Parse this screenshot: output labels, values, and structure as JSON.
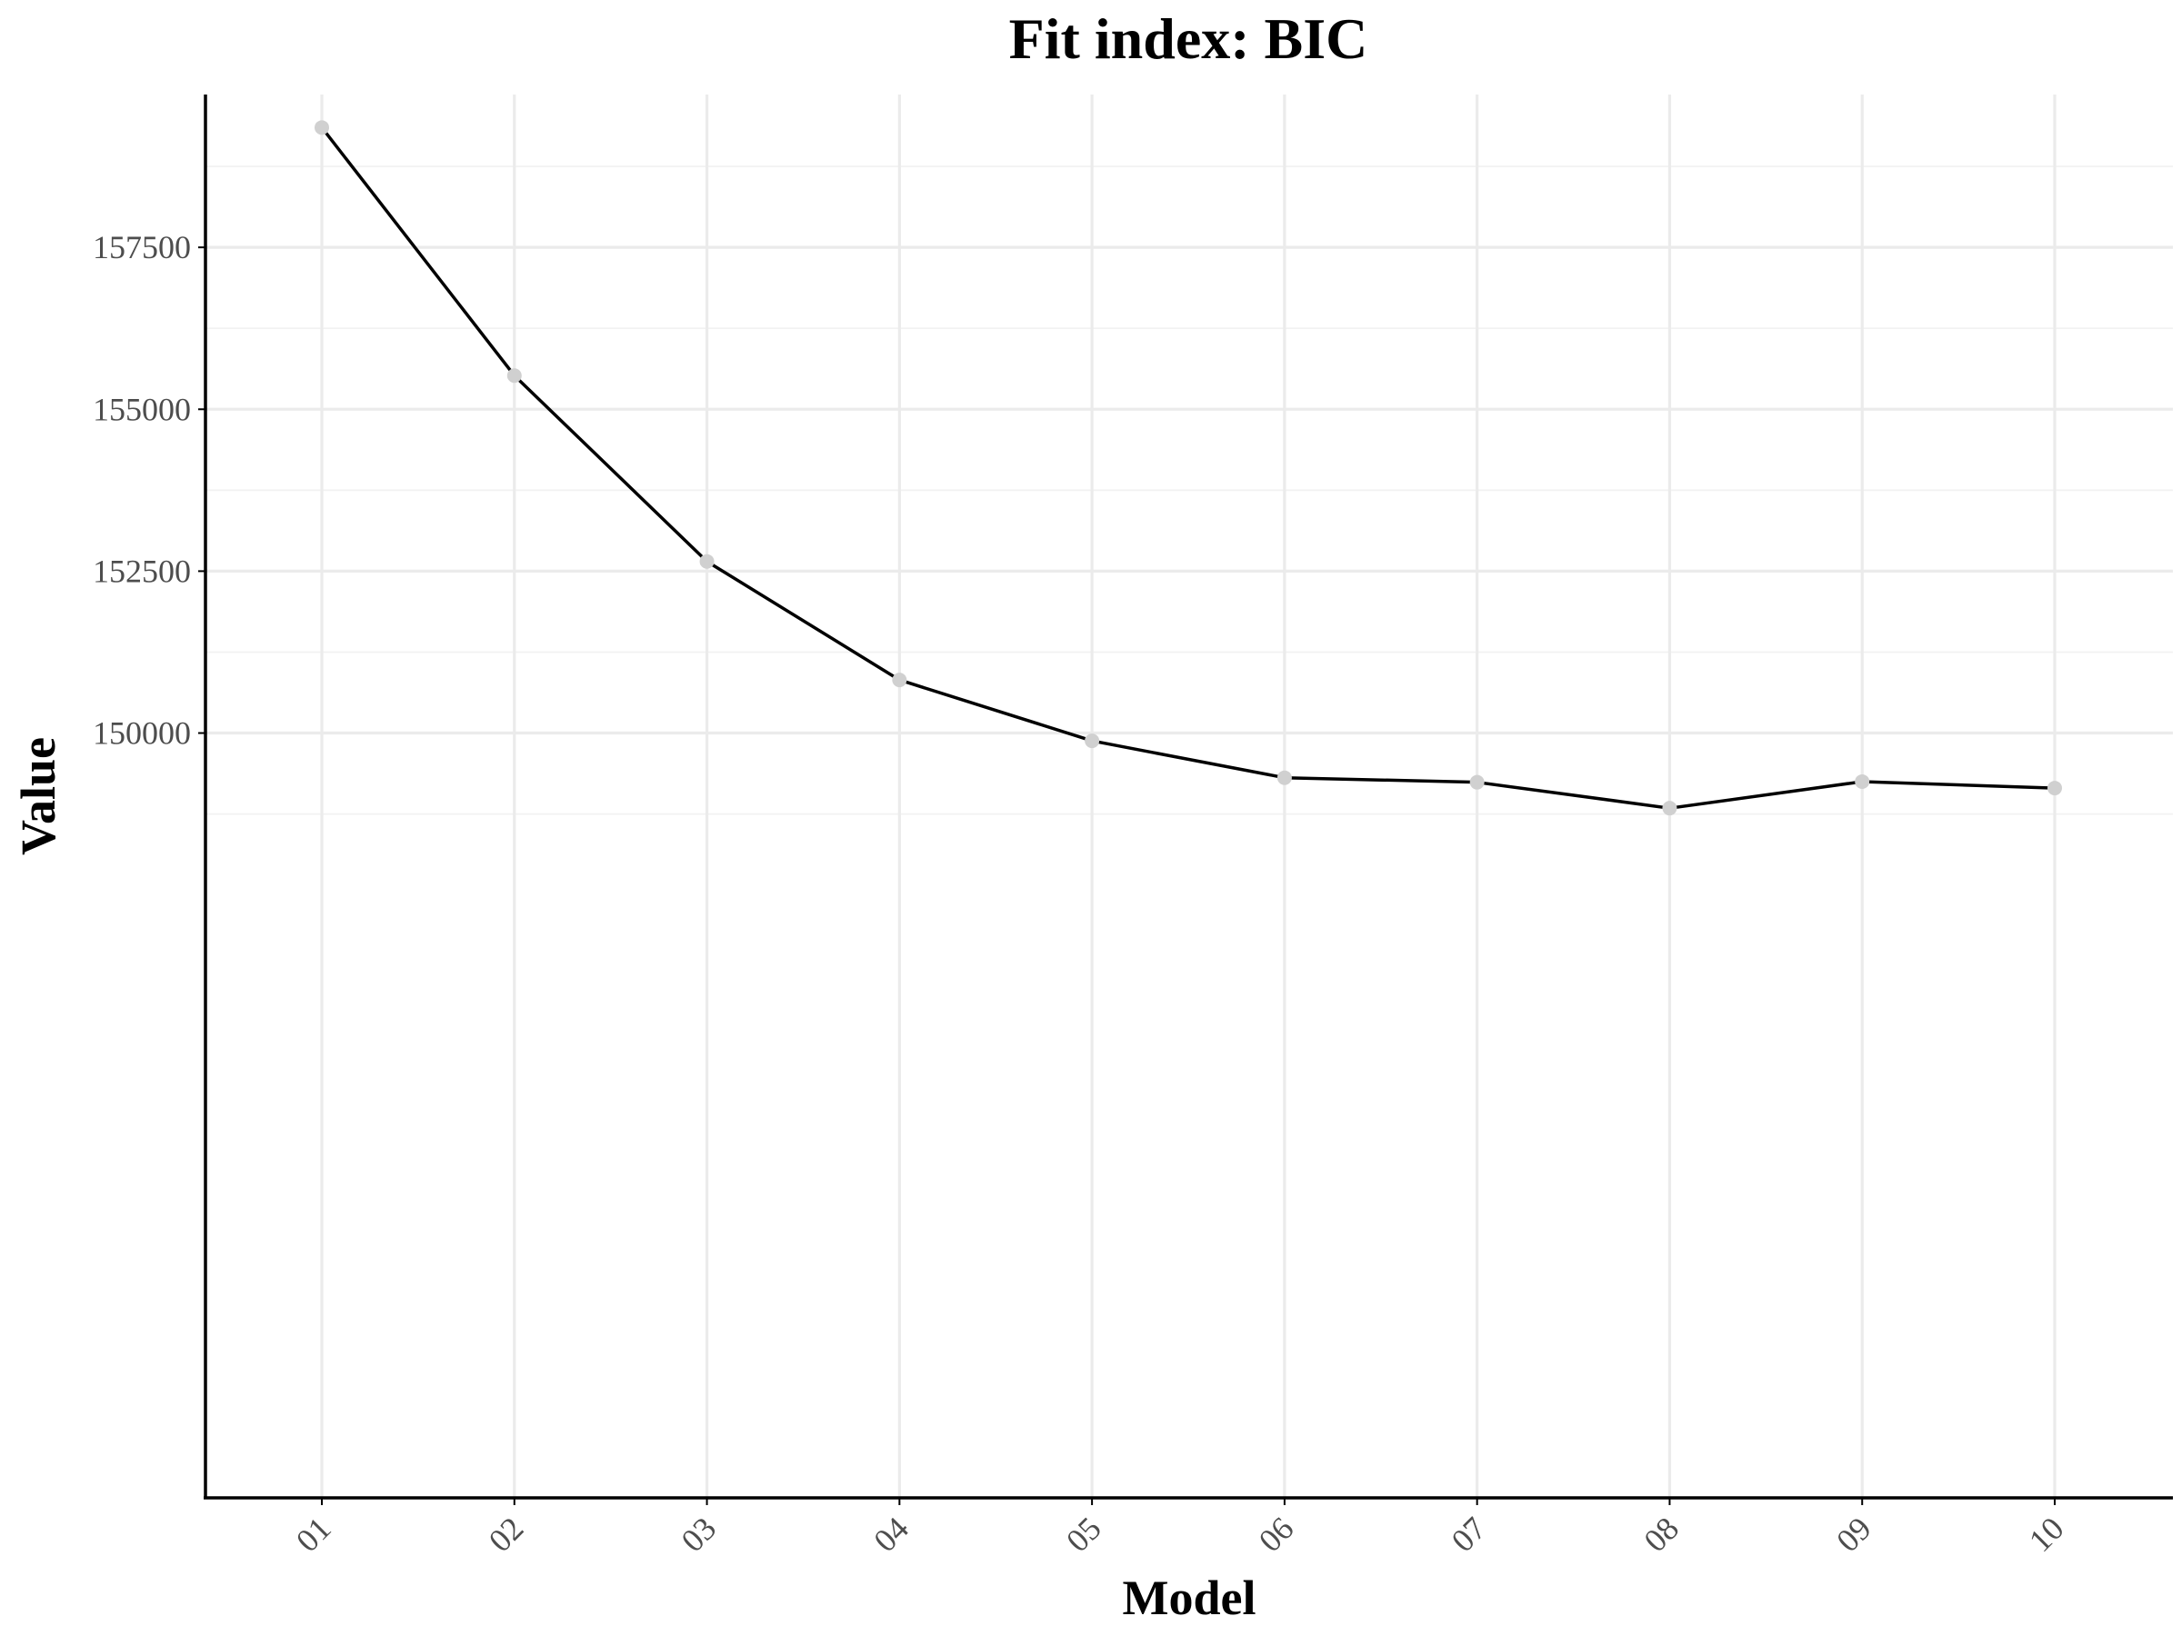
{
  "chart_data": {
    "type": "line",
    "title": "Fit index: BIC",
    "xlabel": "Model",
    "ylabel": "Value",
    "categories": [
      "01",
      "02",
      "03",
      "04",
      "05",
      "06",
      "07",
      "08",
      "09",
      "10"
    ],
    "series": [
      {
        "values": [
          159350,
          155520,
          152650,
          150820,
          149880,
          149310,
          149240,
          148840,
          149250,
          149150
        ]
      }
    ],
    "y_ticks": [
      150000,
      152500,
      155000,
      157500
    ],
    "y_tick_labels": [
      "150000",
      "152500",
      "155000",
      "157500"
    ],
    "y_minor_ticks": [
      148750,
      151250,
      153750,
      156250,
      158750
    ],
    "ylim": [
      138190,
      159860
    ],
    "grid": true,
    "x_tick_rotation": -45,
    "colors": {
      "line": "#000000",
      "points": "#d0d0d0",
      "grid": "#ebebeb"
    }
  }
}
